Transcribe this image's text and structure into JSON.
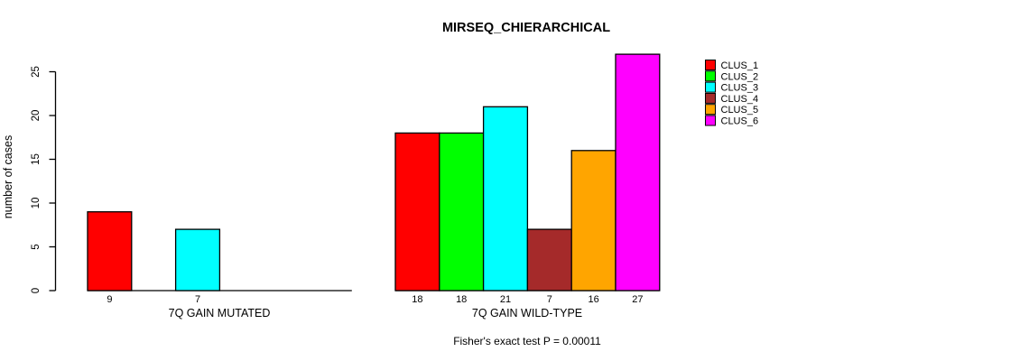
{
  "chart_data": {
    "type": "bar",
    "title": "MIRSEQ_CHIERARCHICAL",
    "ylabel": "number of cases",
    "ylim": [
      0,
      27
    ],
    "yticks": [
      0,
      5,
      10,
      15,
      20,
      25
    ],
    "grid": false,
    "legend_position": "top-right",
    "legend": [
      {
        "name": "CLUS_1",
        "color": "#ff0000"
      },
      {
        "name": "CLUS_2",
        "color": "#00ff00"
      },
      {
        "name": "CLUS_3",
        "color": "#00ffff"
      },
      {
        "name": "CLUS_4",
        "color": "#a52a2a"
      },
      {
        "name": "CLUS_5",
        "color": "#ffa500"
      },
      {
        "name": "CLUS_6",
        "color": "#ff00ff"
      }
    ],
    "groups": [
      {
        "label": "7Q GAIN MUTATED",
        "values": [
          9,
          0,
          7,
          0,
          0,
          0
        ]
      },
      {
        "label": "7Q GAIN WILD-TYPE",
        "values": [
          18,
          18,
          21,
          7,
          16,
          27
        ]
      }
    ],
    "footnote": "Fisher's exact test P = 0.00011"
  }
}
